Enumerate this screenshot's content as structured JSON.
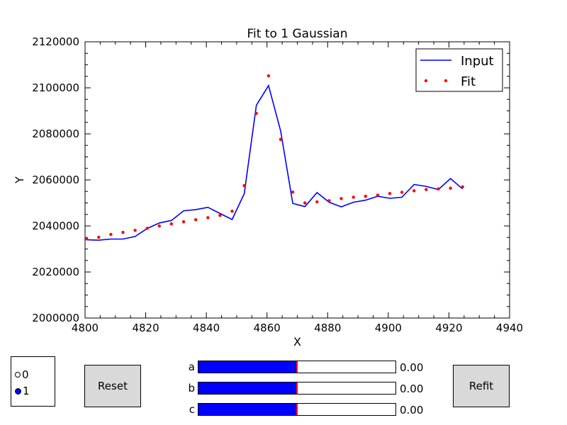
{
  "chart_data": {
    "type": "line",
    "title": "Fit to 1 Gaussian",
    "xlabel": "X",
    "ylabel": "Y",
    "xlim": [
      4800,
      4940
    ],
    "ylim": [
      2000000,
      2120000
    ],
    "x_ticks": [
      4800,
      4820,
      4840,
      4860,
      4880,
      4900,
      4920,
      4940
    ],
    "y_ticks": [
      2000000,
      2020000,
      2040000,
      2060000,
      2080000,
      2100000,
      2120000
    ],
    "legend_position": "top-right",
    "series": [
      {
        "name": "Input",
        "style": "line",
        "color": "#0000ff",
        "x": [
          4800.5,
          4804.5,
          4808.5,
          4812.5,
          4816.5,
          4820.5,
          4824.5,
          4828.5,
          4832.5,
          4836.5,
          4840.5,
          4844.5,
          4848.5,
          4852.5,
          4856.5,
          4860.5,
          4864.5,
          4868.5,
          4872.5,
          4876.5,
          4880.5,
          4884.5,
          4888.5,
          4892.5,
          4896.5,
          4900.5,
          4904.5,
          4908.5,
          4912.5,
          4916.5,
          4920.5,
          4924.5
        ],
        "y": [
          2034000,
          2033800,
          2034300,
          2034300,
          2035400,
          2038900,
          2041300,
          2042400,
          2046600,
          2047100,
          2048100,
          2045400,
          2042800,
          2054000,
          2092400,
          2101000,
          2081200,
          2049800,
          2048400,
          2054500,
          2050300,
          2048300,
          2050300,
          2051200,
          2052900,
          2052000,
          2052500,
          2058000,
          2057200,
          2055800,
          2060600,
          2056100
        ]
      },
      {
        "name": "Fit",
        "style": "points",
        "color": "#ff0000",
        "x": [
          4800.5,
          4804.5,
          4808.5,
          4812.5,
          4816.5,
          4820.5,
          4824.5,
          4828.5,
          4832.5,
          4836.5,
          4840.5,
          4844.5,
          4848.5,
          4852.5,
          4856.5,
          4860.5,
          4864.5,
          4868.5,
          4872.5,
          4876.5,
          4880.5,
          4884.5,
          4888.5,
          4892.5,
          4896.5,
          4900.5,
          4904.5,
          4908.5,
          4912.5,
          4916.5,
          4920.5,
          4924.5
        ],
        "y": [
          2034400,
          2035100,
          2036300,
          2037200,
          2038100,
          2039000,
          2040000,
          2040900,
          2041800,
          2042700,
          2043600,
          2044600,
          2046400,
          2057500,
          2088900,
          2105200,
          2077600,
          2054700,
          2050000,
          2050500,
          2051000,
          2051900,
          2052500,
          2052900,
          2053400,
          2054100,
          2054600,
          2055300,
          2055800,
          2056100,
          2056400,
          2057000
        ]
      }
    ]
  },
  "controls": {
    "radio_options": [
      "0",
      "1"
    ],
    "radio_selected": 1,
    "reset_label": "Reset",
    "refit_label": "Refit",
    "sliders": [
      {
        "label": "a",
        "value_text": "0.00",
        "fill_fraction": 0.5
      },
      {
        "label": "b",
        "value_text": "0.00",
        "fill_fraction": 0.5
      },
      {
        "label": "c",
        "value_text": "0.00",
        "fill_fraction": 0.5
      }
    ]
  }
}
